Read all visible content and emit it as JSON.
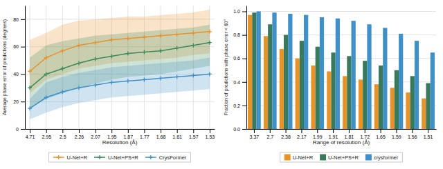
{
  "chart_data": [
    {
      "type": "line",
      "xlabel": "Resolution (Å)",
      "ylabel": "Average phase error of predictions (degrees)",
      "categories": [
        "4.71",
        "2.95",
        "2.5",
        "2.26",
        "2.07",
        "1.95",
        "1.87",
        "1.77",
        "1.68",
        "1.61",
        "1.57",
        "1.53"
      ],
      "series": [
        {
          "name": "U-Net+R",
          "color": "#e8922a",
          "marker": "plus",
          "values": [
            42,
            52,
            57,
            61,
            63,
            65,
            66,
            67,
            68,
            69,
            70,
            71
          ],
          "upper": [
            65,
            70,
            76,
            79,
            80,
            81,
            82,
            82,
            83,
            84,
            85,
            87
          ],
          "lower": [
            26,
            36,
            40,
            44,
            46,
            48,
            49,
            50,
            51,
            52,
            54,
            55
          ]
        },
        {
          "name": "U-Net+PS+R",
          "color": "#3a8a5c",
          "marker": "plus",
          "values": [
            30,
            40,
            44,
            48,
            51,
            53,
            55,
            56,
            57,
            59,
            61,
            63
          ],
          "upper": [
            52,
            61,
            64,
            66,
            68,
            69,
            70,
            71,
            72,
            73,
            74,
            76
          ],
          "lower": [
            15,
            22,
            26,
            30,
            33,
            36,
            38,
            39,
            40,
            42,
            44,
            46
          ]
        },
        {
          "name": "CrysFormer",
          "color": "#4090c8",
          "marker": "plus",
          "values": [
            15,
            23,
            27,
            30,
            32,
            34,
            35,
            36,
            37,
            38,
            39,
            40
          ],
          "upper": [
            22,
            34,
            38,
            41,
            43,
            45,
            46,
            47,
            48,
            49,
            50,
            52
          ],
          "lower": [
            7,
            12,
            16,
            19,
            21,
            23,
            24,
            25,
            26,
            27,
            28,
            29
          ]
        }
      ],
      "ylim": [
        0,
        90
      ],
      "yticks": [
        0,
        20,
        40,
        60,
        80
      ],
      "grid": true,
      "legend": "bottom"
    },
    {
      "type": "bar",
      "xlabel": "Range of resolution (Å)",
      "ylabel": "Fraction of predictions with phase error < 60°",
      "categories": [
        "3.37",
        "2.7",
        "2.38",
        "2.17",
        "1.99",
        "1.91",
        "1.81",
        "1.72",
        "1.65",
        "1.59",
        "1.56",
        "1.51"
      ],
      "series": [
        {
          "name": "U-Net+R",
          "color": "#e8922a",
          "values": [
            0.97,
            0.79,
            0.68,
            0.6,
            0.54,
            0.49,
            0.45,
            0.42,
            0.38,
            0.35,
            0.31,
            0.26
          ]
        },
        {
          "name": "U-Net+PS+R",
          "color": "#3a7a5c",
          "values": [
            0.99,
            0.89,
            0.8,
            0.75,
            0.7,
            0.65,
            0.62,
            0.58,
            0.54,
            0.5,
            0.45,
            0.39
          ]
        },
        {
          "name": "crysformer",
          "color": "#4090c8",
          "values": [
            1.0,
            0.99,
            0.98,
            0.97,
            0.95,
            0.94,
            0.92,
            0.89,
            0.86,
            0.81,
            0.75,
            0.65
          ]
        }
      ],
      "ylim": [
        0.0,
        1.05
      ],
      "yticks": [
        {
          "value": 0.0,
          "label": "0.0"
        },
        0.2,
        0.4,
        0.6,
        0.8,
        {
          "value": 1.0,
          "label": "1.0"
        }
      ],
      "grid": true,
      "legend": "bottom"
    }
  ]
}
